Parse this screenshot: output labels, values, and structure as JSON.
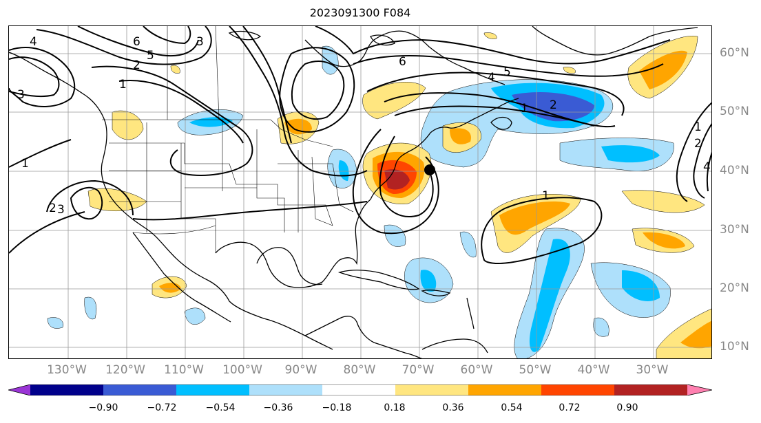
{
  "title": "2023091300 F084",
  "lon_labels": [
    "130°W",
    "120°W",
    "110°W",
    "100°W",
    "90°W",
    "80°W",
    "70°W",
    "60°W",
    "50°W",
    "40°W",
    "30°W"
  ],
  "lat_labels": [
    "60°N",
    "50°N",
    "40°N",
    "30°N",
    "20°N",
    "10°N"
  ],
  "colorbar": {
    "ticks": [
      "−0.90",
      "−0.72",
      "−0.54",
      "−0.36",
      "−0.18",
      "0.18",
      "0.36",
      "0.54",
      "0.72",
      "0.90"
    ],
    "colors": {
      "under": "#9a35d6",
      "bins": [
        "#00008b",
        "#3a5bd4",
        "#00bfff",
        "#aee0fb",
        "#ffffff",
        "#ffe680",
        "#ffa500",
        "#ff4500",
        "#b22222"
      ],
      "over": "#ff80b0"
    }
  },
  "contour_labels": [
    "6",
    "5",
    "4",
    "2",
    "1",
    "1",
    "4",
    "6",
    "3",
    "5",
    "3",
    "2",
    "1",
    "3",
    "2",
    "1",
    "1",
    "2",
    "4"
  ],
  "marker": "storm-center"
}
